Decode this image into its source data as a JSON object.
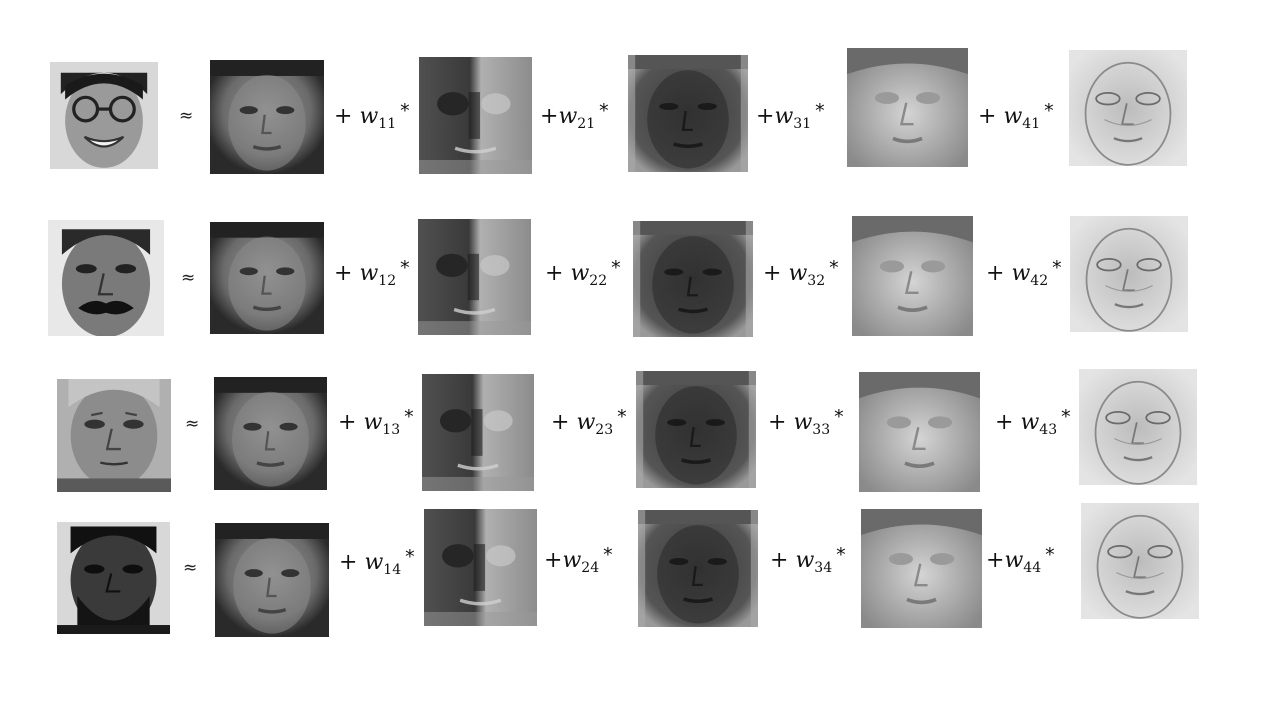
{
  "approx_symbol": "≈",
  "rows": [
    {
      "input_face": "input-face-glasses-smiling",
      "terms": [
        {
          "prefix": "+ ",
          "w": "w",
          "sub": "11",
          "star": "*"
        },
        {
          "prefix": "+",
          "w": "w",
          "sub": "21",
          "star": "*"
        },
        {
          "prefix": "+",
          "w": "w",
          "sub": "31",
          "star": "*"
        },
        {
          "prefix": "+ ",
          "w": "w",
          "sub": "41",
          "star": "*"
        }
      ]
    },
    {
      "input_face": "input-face-mustache",
      "terms": [
        {
          "prefix": "+ ",
          "w": "w",
          "sub": "12",
          "star": "*"
        },
        {
          "prefix": "+ ",
          "w": "w",
          "sub": "22",
          "star": "*"
        },
        {
          "prefix": "+ ",
          "w": "w",
          "sub": "32",
          "star": "*"
        },
        {
          "prefix": "+ ",
          "w": "w",
          "sub": "42",
          "star": "*"
        }
      ]
    },
    {
      "input_face": "input-face-older-man",
      "terms": [
        {
          "prefix": "+ ",
          "w": "w",
          "sub": "13",
          "star": "*"
        },
        {
          "prefix": "+ ",
          "w": "w",
          "sub": "23",
          "star": "*"
        },
        {
          "prefix": "+ ",
          "w": "w",
          "sub": "33",
          "star": "*"
        },
        {
          "prefix": "+ ",
          "w": "w",
          "sub": "43",
          "star": "*"
        }
      ]
    },
    {
      "input_face": "input-face-bearded",
      "terms": [
        {
          "prefix": "+ ",
          "w": "w",
          "sub": "14",
          "star": "*"
        },
        {
          "prefix": "+",
          "w": "w",
          "sub": "24",
          "star": "*"
        },
        {
          "prefix": "+ ",
          "w": "w",
          "sub": "34",
          "star": "*"
        },
        {
          "prefix": "+",
          "w": "w",
          "sub": "44",
          "star": "*"
        }
      ]
    }
  ],
  "colors": {
    "mean_face_bg": "#5e5e5e",
    "eigen1_bg": "#8a8a8a",
    "eigen2_bg": "#3e3e3e",
    "eigen3_bg": "#b4b4b4",
    "eigen4_bg": "#cfcfcf"
  }
}
